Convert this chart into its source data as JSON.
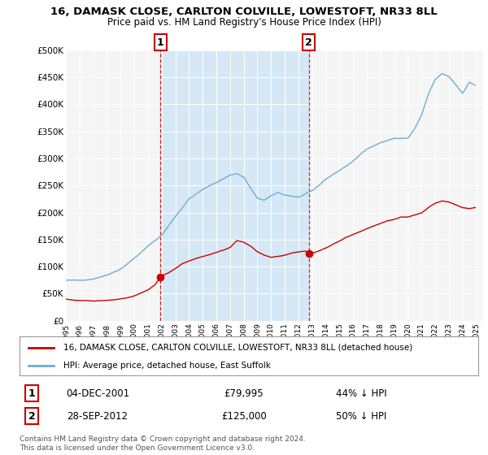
{
  "title": "16, DAMASK CLOSE, CARLTON COLVILLE, LOWESTOFT, NR33 8LL",
  "subtitle": "Price paid vs. HM Land Registry's House Price Index (HPI)",
  "legend_property": "16, DAMASK CLOSE, CARLTON COLVILLE, LOWESTOFT, NR33 8LL (detached house)",
  "legend_hpi": "HPI: Average price, detached house, East Suffolk",
  "footnote": "Contains HM Land Registry data © Crown copyright and database right 2024.\nThis data is licensed under the Open Government Licence v3.0.",
  "sale1_date": "04-DEC-2001",
  "sale1_price": "£79,995",
  "sale1_hpi": "44% ↓ HPI",
  "sale2_date": "28-SEP-2012",
  "sale2_price": "£125,000",
  "sale2_hpi": "50% ↓ HPI",
  "sale1_year": 2001.92,
  "sale1_value": 79995,
  "sale2_year": 2012.75,
  "sale2_value": 125000,
  "hpi_color": "#6baed6",
  "property_color": "#cc0000",
  "vline_color": "#cc0000",
  "shade_color": "#d6e8f5",
  "plot_bg_color": "#f5f5f5",
  "ylim": [
    0,
    500000
  ],
  "xlim_start": 1995.0,
  "xlim_end": 2025.5,
  "yticks": [
    0,
    50000,
    100000,
    150000,
    200000,
    250000,
    300000,
    350000,
    400000,
    450000,
    500000
  ],
  "ytick_labels": [
    "£0",
    "£50K",
    "£100K",
    "£150K",
    "£200K",
    "£250K",
    "£300K",
    "£350K",
    "£400K",
    "£450K",
    "£500K"
  ],
  "xticks": [
    1995,
    1996,
    1997,
    1998,
    1999,
    2000,
    2001,
    2002,
    2003,
    2004,
    2005,
    2006,
    2007,
    2008,
    2009,
    2010,
    2011,
    2012,
    2013,
    2014,
    2015,
    2016,
    2017,
    2018,
    2019,
    2020,
    2021,
    2022,
    2023,
    2024,
    2025
  ]
}
